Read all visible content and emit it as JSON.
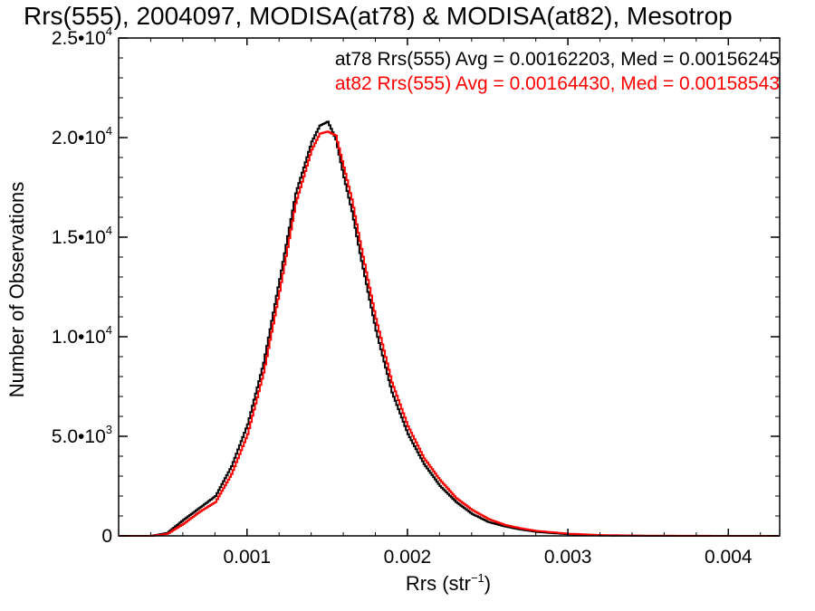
{
  "chart_data": {
    "type": "line",
    "title": "Rrs(555), 2004097, MODISA(at78) & MODISA(at82), Mesotrop",
    "xlabel": "Rrs (str",
    "xlabel_sup": "−1",
    "xlabel_close": ")",
    "ylabel": "Number of Observations",
    "xlim": [
      0.0002,
      0.00432
    ],
    "ylim": [
      0,
      25000
    ],
    "xticks": [
      {
        "value": 0.001,
        "label": "0.001"
      },
      {
        "value": 0.002,
        "label": "0.002"
      },
      {
        "value": 0.003,
        "label": "0.003"
      },
      {
        "value": 0.004,
        "label": "0.004"
      }
    ],
    "yticks": [
      {
        "value": 0,
        "label": "0",
        "sup": ""
      },
      {
        "value": 5000,
        "label": "5.0•10",
        "sup": "3"
      },
      {
        "value": 10000,
        "label": "1.0•10",
        "sup": "4"
      },
      {
        "value": 15000,
        "label": "1.5•10",
        "sup": "4"
      },
      {
        "value": 20000,
        "label": "2.0•10",
        "sup": "4"
      },
      {
        "value": 25000,
        "label": "2.5•10",
        "sup": "4"
      }
    ],
    "grid": false,
    "legend_position": "top-right",
    "annotations": [
      {
        "text": "at78 Rrs(555) Avg = 0.00162203, Med = 0.00156245",
        "color": "#000000"
      },
      {
        "text": "at82 Rrs(555) Avg = 0.00164430, Med = 0.00158543",
        "color": "#ff0000"
      }
    ],
    "x": [
      0.0002,
      0.0004,
      0.0005,
      0.0006,
      0.0007,
      0.0008,
      0.0009,
      0.001,
      0.0011,
      0.0012,
      0.0013,
      0.0014,
      0.00145,
      0.0015,
      0.00155,
      0.0016,
      0.00165,
      0.0017,
      0.0018,
      0.0019,
      0.002,
      0.0021,
      0.0022,
      0.0023,
      0.0024,
      0.0025,
      0.0026,
      0.0027,
      0.0028,
      0.003,
      0.0032,
      0.0035,
      0.004,
      0.00432
    ],
    "series": [
      {
        "name": "at78",
        "color": "#000000",
        "values": [
          0,
          0,
          150,
          800,
          1400,
          2000,
          3500,
          5600,
          8700,
          12900,
          17200,
          19800,
          20600,
          20800,
          19900,
          18000,
          16300,
          14200,
          10300,
          7200,
          5100,
          3600,
          2500,
          1700,
          1100,
          700,
          480,
          320,
          200,
          80,
          20,
          0,
          0,
          0
        ]
      },
      {
        "name": "at82",
        "color": "#ff0000",
        "values": [
          0,
          0,
          100,
          600,
          1200,
          1700,
          3100,
          5100,
          8200,
          12300,
          16700,
          19400,
          20200,
          20300,
          20100,
          18500,
          16900,
          14800,
          10900,
          7700,
          5500,
          3900,
          2800,
          1900,
          1300,
          850,
          560,
          380,
          250,
          110,
          40,
          10,
          0,
          0
        ]
      }
    ]
  }
}
